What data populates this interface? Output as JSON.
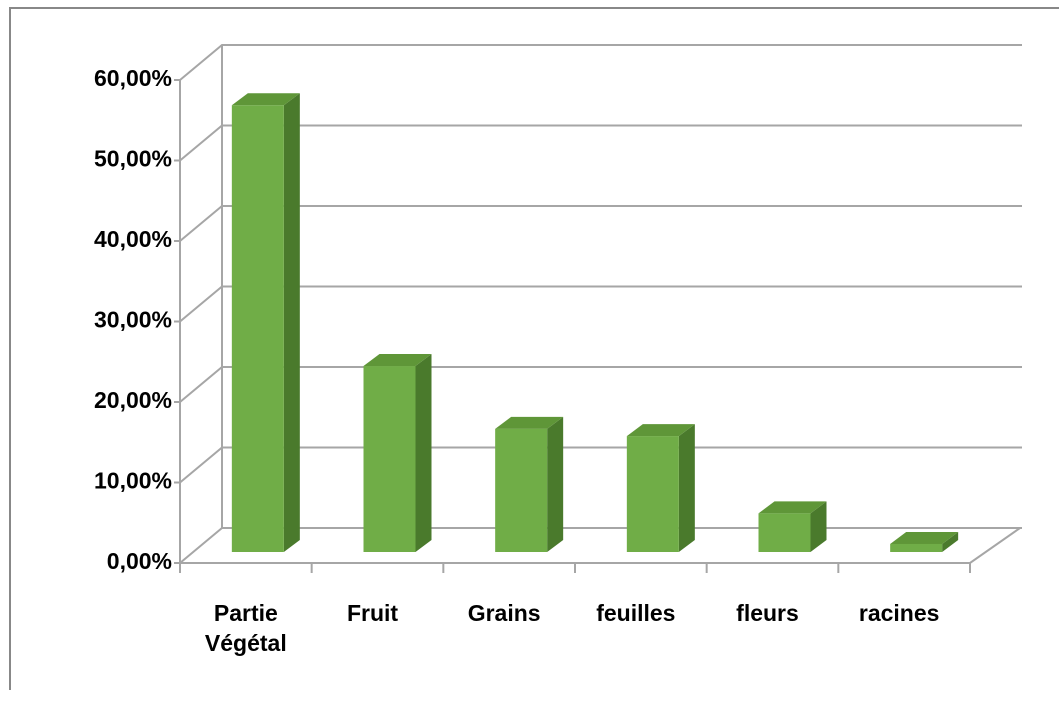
{
  "chart_data": {
    "type": "bar3d",
    "categories": [
      "Partie Végétal",
      "Fruit",
      "Grains",
      "feuilles",
      "fleurs",
      "racines"
    ],
    "values": [
      55.5,
      23.1,
      15.3,
      14.4,
      4.8,
      1.0
    ],
    "color": "#70ad47",
    "ylim": [
      0,
      60
    ],
    "yticks": [
      {
        "value": 0,
        "label": "0,00%"
      },
      {
        "value": 10,
        "label": "10,00%"
      },
      {
        "value": 20,
        "label": "20,00%"
      },
      {
        "value": 30,
        "label": "30,00%"
      },
      {
        "value": 40,
        "label": "40,00%"
      },
      {
        "value": 50,
        "label": "50,00%"
      },
      {
        "value": 60,
        "label": "60,00%"
      }
    ],
    "grid": true
  }
}
